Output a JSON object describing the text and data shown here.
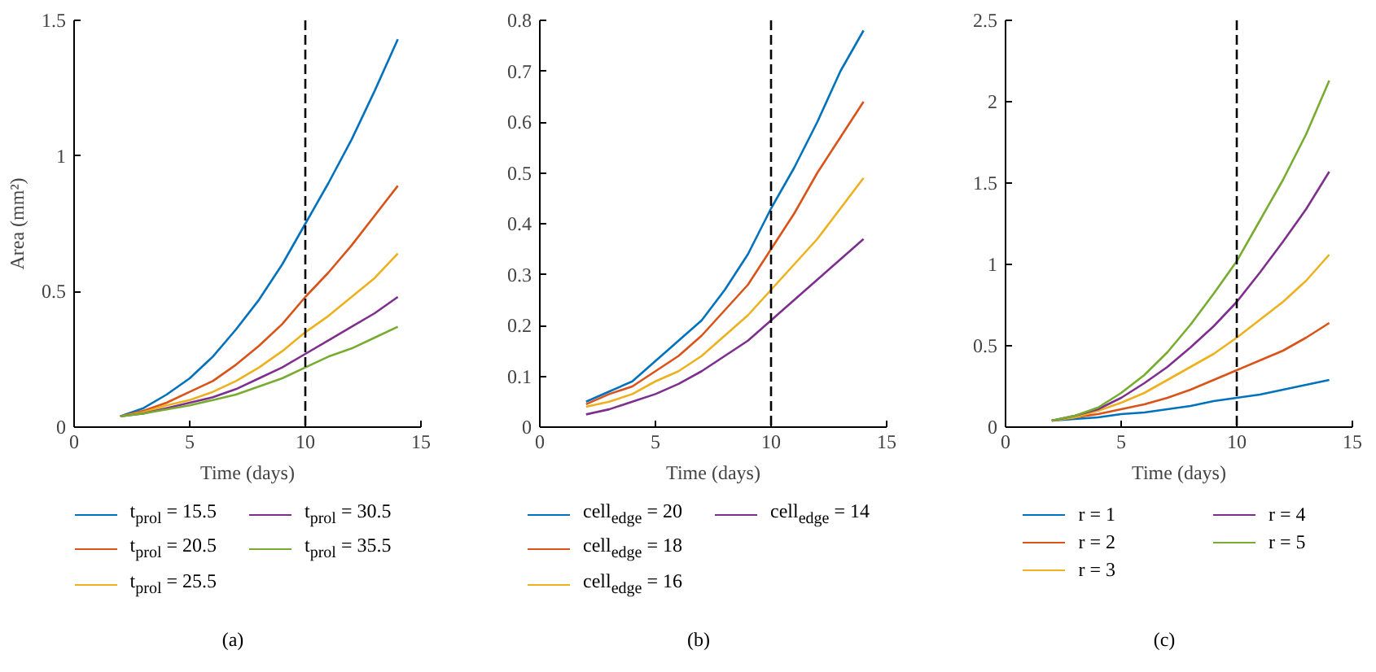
{
  "chart_data": [
    {
      "type": "line",
      "xlabel": "Time (days)",
      "ylabel": "Area (mm²)",
      "xlim": [
        0,
        15
      ],
      "xticks": [
        0,
        5,
        10,
        15
      ],
      "ylim": [
        0,
        1.5
      ],
      "yticks": [
        0,
        0.5,
        1,
        1.5
      ],
      "grid": false,
      "legend": "bottom",
      "annotations": [
        "(a)"
      ],
      "x": [
        2,
        3,
        4,
        5,
        6,
        7,
        8,
        9,
        10,
        11,
        12,
        13,
        14
      ],
      "series": [
        {
          "name": "t$_{prol}$ = 15.5",
          "color": "#0072bd",
          "values": [
            0.04,
            0.07,
            0.12,
            0.18,
            0.26,
            0.36,
            0.47,
            0.6,
            0.75,
            0.9,
            1.06,
            1.24,
            1.43
          ]
        },
        {
          "name": "t$_{prol}$ = 20.5",
          "color": "#d95319",
          "values": [
            0.04,
            0.06,
            0.09,
            0.13,
            0.17,
            0.23,
            0.3,
            0.38,
            0.48,
            0.57,
            0.67,
            0.78,
            0.89
          ]
        },
        {
          "name": "t$_{prol}$ = 25.5",
          "color": "#edb120",
          "values": [
            0.04,
            0.055,
            0.08,
            0.1,
            0.13,
            0.17,
            0.22,
            0.28,
            0.35,
            0.41,
            0.48,
            0.55,
            0.64
          ]
        },
        {
          "name": "t$_{prol}$ = 30.5",
          "color": "#7e2f8e",
          "values": [
            0.04,
            0.05,
            0.07,
            0.09,
            0.11,
            0.14,
            0.18,
            0.22,
            0.27,
            0.32,
            0.37,
            0.42,
            0.48
          ]
        },
        {
          "name": "t$_{prol}$ = 35.5",
          "color": "#77ac30",
          "values": [
            0.04,
            0.05,
            0.065,
            0.08,
            0.1,
            0.12,
            0.15,
            0.18,
            0.22,
            0.26,
            0.29,
            0.33,
            0.37
          ]
        }
      ],
      "ref_lines": [
        {
          "axis": "x",
          "value": 10,
          "color": "#000000",
          "line_style": "dashed"
        }
      ]
    },
    {
      "type": "line",
      "xlabel": "Time (days)",
      "xlim": [
        0,
        15
      ],
      "xticks": [
        0,
        5,
        10,
        15
      ],
      "ylim": [
        0,
        0.8
      ],
      "yticks": [
        0,
        0.1,
        0.2,
        0.3,
        0.4,
        0.5,
        0.6,
        0.7,
        0.8
      ],
      "grid": false,
      "legend": "bottom",
      "annotations": [
        "(b)"
      ],
      "x": [
        2,
        3,
        4,
        5,
        6,
        7,
        8,
        9,
        10,
        11,
        12,
        13,
        14
      ],
      "series": [
        {
          "name": "cell$_{edge}$ = 20",
          "color": "#0072bd",
          "values": [
            0.05,
            0.07,
            0.09,
            0.13,
            0.17,
            0.21,
            0.27,
            0.34,
            0.43,
            0.51,
            0.6,
            0.7,
            0.78
          ]
        },
        {
          "name": "cell$_{edge}$ = 18",
          "color": "#d95319",
          "values": [
            0.045,
            0.065,
            0.08,
            0.11,
            0.14,
            0.18,
            0.23,
            0.28,
            0.35,
            0.42,
            0.5,
            0.57,
            0.64
          ]
        },
        {
          "name": "cell$_{edge}$ = 16",
          "color": "#edb120",
          "values": [
            0.04,
            0.05,
            0.065,
            0.09,
            0.11,
            0.14,
            0.18,
            0.22,
            0.27,
            0.32,
            0.37,
            0.43,
            0.49
          ]
        },
        {
          "name": "cell$_{edge}$ = 14",
          "color": "#7e2f8e",
          "values": [
            0.025,
            0.035,
            0.05,
            0.065,
            0.085,
            0.11,
            0.14,
            0.17,
            0.21,
            0.25,
            0.29,
            0.33,
            0.37
          ]
        }
      ],
      "ref_lines": [
        {
          "axis": "x",
          "value": 10,
          "color": "#000000",
          "line_style": "dashed"
        }
      ]
    },
    {
      "type": "line",
      "xlabel": "Time (days)",
      "xlim": [
        0,
        15
      ],
      "xticks": [
        0,
        5,
        10,
        15
      ],
      "ylim": [
        0,
        2.5
      ],
      "yticks": [
        0,
        0.5,
        1,
        1.5,
        2,
        2.5
      ],
      "grid": false,
      "legend": "bottom",
      "annotations": [
        "(c)"
      ],
      "x": [
        2,
        3,
        4,
        5,
        6,
        7,
        8,
        9,
        10,
        11,
        12,
        13,
        14
      ],
      "series": [
        {
          "name": "r = 1",
          "color": "#0072bd",
          "values": [
            0.04,
            0.05,
            0.06,
            0.08,
            0.09,
            0.11,
            0.13,
            0.16,
            0.18,
            0.2,
            0.23,
            0.26,
            0.29
          ]
        },
        {
          "name": "r = 2",
          "color": "#d95319",
          "values": [
            0.04,
            0.06,
            0.08,
            0.11,
            0.14,
            0.18,
            0.23,
            0.29,
            0.35,
            0.41,
            0.47,
            0.55,
            0.64
          ]
        },
        {
          "name": "r = 3",
          "color": "#edb120",
          "values": [
            0.04,
            0.06,
            0.1,
            0.15,
            0.21,
            0.29,
            0.37,
            0.45,
            0.55,
            0.66,
            0.77,
            0.9,
            1.06
          ]
        },
        {
          "name": "r = 4",
          "color": "#7e2f8e",
          "values": [
            0.04,
            0.07,
            0.11,
            0.18,
            0.27,
            0.37,
            0.49,
            0.62,
            0.77,
            0.95,
            1.14,
            1.34,
            1.57
          ]
        },
        {
          "name": "r = 5",
          "color": "#77ac30",
          "values": [
            0.04,
            0.07,
            0.12,
            0.21,
            0.32,
            0.46,
            0.63,
            0.82,
            1.02,
            1.27,
            1.52,
            1.8,
            2.13
          ]
        }
      ],
      "ref_lines": [
        {
          "axis": "x",
          "value": 10,
          "color": "#000000",
          "line_style": "dashed"
        }
      ]
    }
  ]
}
